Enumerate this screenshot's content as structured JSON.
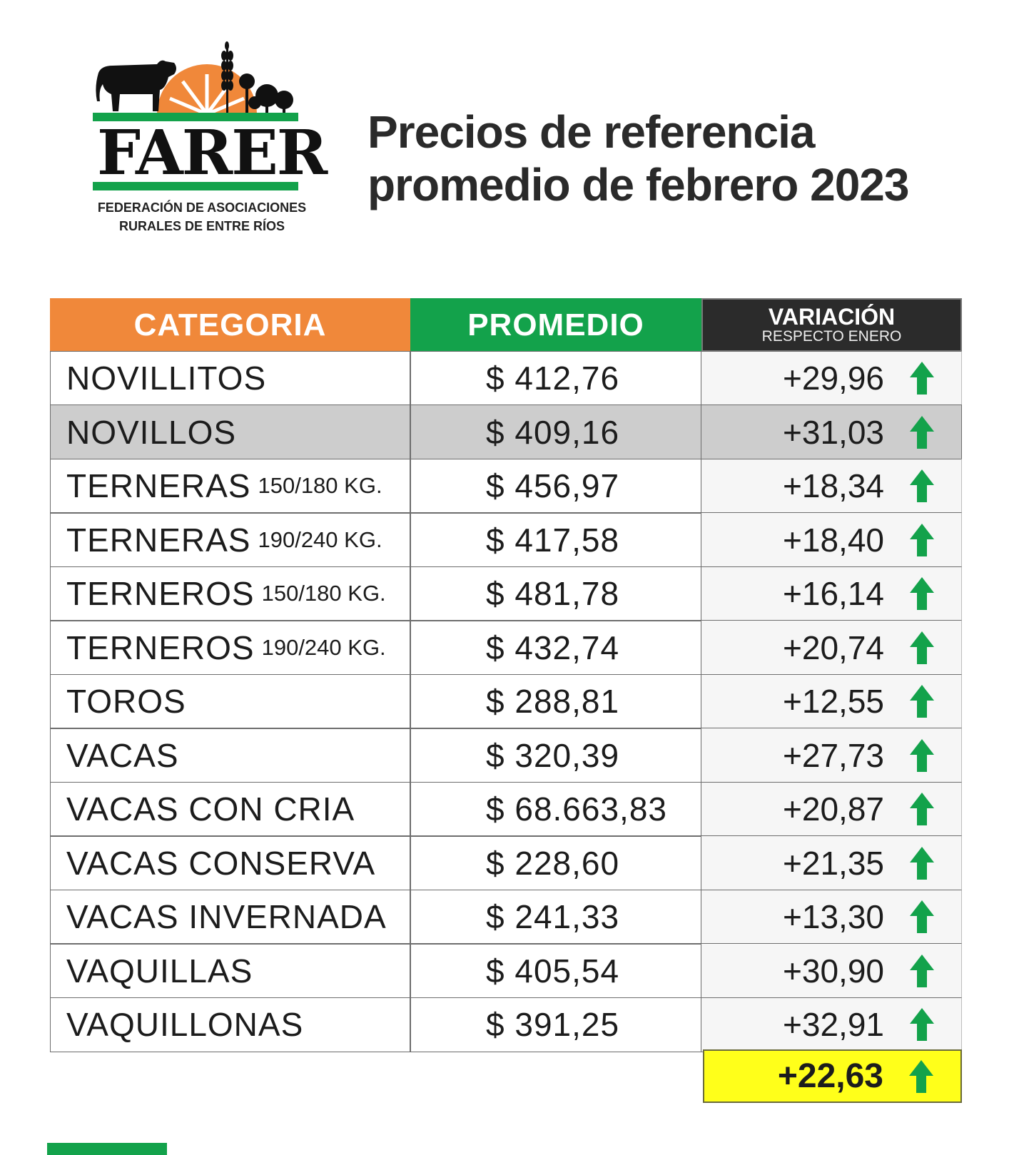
{
  "logo": {
    "name": "FARER",
    "subtitle_line1": "FEDERACIÓN DE ASOCIACIONES",
    "subtitle_line2": "RURALES DE ENTRE RÍOS"
  },
  "title": {
    "line1": "Precios de referencia",
    "line2": "promedio de febrero 2023"
  },
  "table": {
    "headers": {
      "categoria": "CATEGORIA",
      "promedio": "PROMEDIO",
      "variacion": "VARIACIÓN",
      "variacion_sub": "RESPECTO ENERO"
    },
    "rows": [
      {
        "categoria": "NOVILLITOS",
        "sub": "",
        "promedio": "$ 412,76",
        "variacion": "+29,96",
        "trend": "up-arrow-icon"
      },
      {
        "categoria": "NOVILLOS",
        "sub": "",
        "promedio": "$ 409,16",
        "variacion": "+31,03",
        "trend": "up-arrow-icon"
      },
      {
        "categoria": "TERNERAS",
        "sub": "150/180 KG.",
        "promedio": "$ 456,97",
        "variacion": "+18,34",
        "trend": "up-arrow-icon"
      },
      {
        "categoria": "TERNERAS",
        "sub": "190/240 KG.",
        "promedio": "$ 417,58",
        "variacion": "+18,40",
        "trend": "up-arrow-icon"
      },
      {
        "categoria": "TERNEROS",
        "sub": "150/180 KG.",
        "promedio": "$ 481,78",
        "variacion": "+16,14",
        "trend": "up-arrow-icon"
      },
      {
        "categoria": "TERNEROS",
        "sub": "190/240 KG.",
        "promedio": "$ 432,74",
        "variacion": "+20,74",
        "trend": "up-arrow-icon"
      },
      {
        "categoria": "TOROS",
        "sub": "",
        "promedio": "$ 288,81",
        "variacion": "+12,55",
        "trend": "up-arrow-icon"
      },
      {
        "categoria": "VACAS",
        "sub": "",
        "promedio": "$ 320,39",
        "variacion": "+27,73",
        "trend": "up-arrow-icon"
      },
      {
        "categoria": "VACAS CON CRIA",
        "sub": "",
        "promedio": "$ 68.663,83",
        "variacion": "+20,87",
        "trend": "up-arrow-icon"
      },
      {
        "categoria": "VACAS CONSERVA",
        "sub": "",
        "promedio": "$ 228,60",
        "variacion": "+21,35",
        "trend": "up-arrow-icon"
      },
      {
        "categoria": "VACAS INVERNADA",
        "sub": "",
        "promedio": "$ 241,33",
        "variacion": "+13,30",
        "trend": "up-arrow-icon"
      },
      {
        "categoria": "VAQUILLAS",
        "sub": "",
        "promedio": "$ 405,54",
        "variacion": "+30,90",
        "trend": "up-arrow-icon"
      },
      {
        "categoria": "VAQUILLONAS",
        "sub": "",
        "promedio": "$ 391,25",
        "variacion": "+32,91",
        "trend": "up-arrow-icon"
      }
    ],
    "total": {
      "variacion": "+22,63",
      "trend": "up-arrow-icon"
    }
  },
  "colors": {
    "orange": "#f0883a",
    "green": "#13a24b",
    "dark": "#2b2b2b",
    "highlight_row": "#cdcdcd",
    "total_bg": "#ffff1a",
    "arrow": "#13a24b"
  }
}
